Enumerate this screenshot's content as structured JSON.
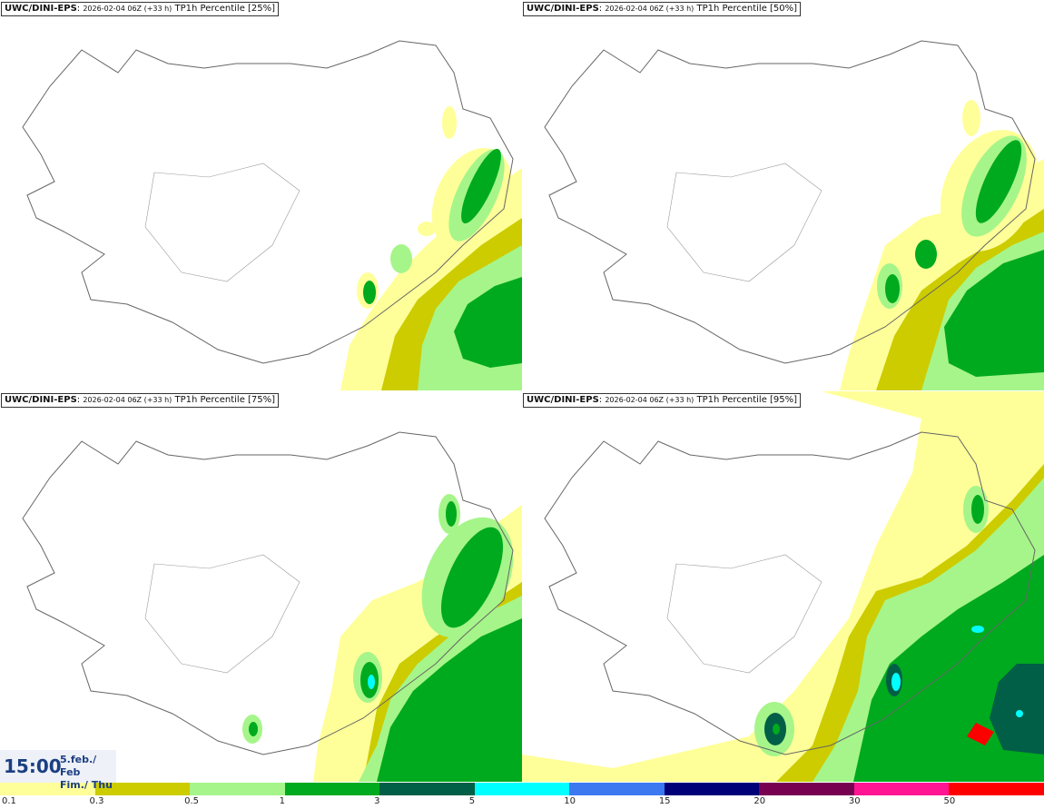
{
  "panels": [
    {
      "model": "UWC/DINI-EPS",
      "run": "2026-02-04 06Z (+33 h)",
      "field": "TP1h Percentile [25%]"
    },
    {
      "model": "UWC/DINI-EPS",
      "run": "2026-02-04 06Z (+33 h)",
      "field": "TP1h Percentile [50%]"
    },
    {
      "model": "UWC/DINI-EPS",
      "run": "2026-02-04 06Z (+33 h)",
      "field": "TP1h Percentile [75%]"
    },
    {
      "model": "UWC/DINI-EPS",
      "run": "2026-02-04 06Z (+33 h)",
      "field": "TP1h Percentile [95%]"
    }
  ],
  "valid_time": {
    "time": "15:00",
    "date_line1": "5.feb./ Feb",
    "date_line2": "Fim./ Thu"
  },
  "legend": {
    "colors": [
      "#ffff99",
      "#cccc00",
      "#a6f58a",
      "#00aa1e",
      "#005f46",
      "#00ffff",
      "#3c78f0",
      "#000078",
      "#780050",
      "#ff1493",
      "#ff0000"
    ],
    "labels": [
      "0.1",
      "0.3",
      "0.5",
      "1",
      "3",
      "5",
      "10",
      "15",
      "20",
      "30",
      "50"
    ]
  },
  "colors": {
    "land_outline": "#666666",
    "fill_01": "#ffff99",
    "fill_03": "#cccc00",
    "fill_05": "#a6f58a",
    "fill_1": "#00aa1e",
    "fill_3": "#005f46",
    "fill_5": "#00ffff"
  }
}
